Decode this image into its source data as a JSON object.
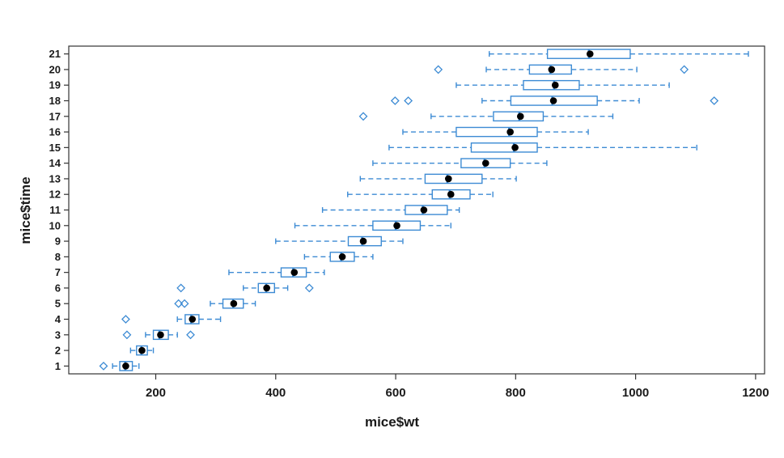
{
  "chart_data": {
    "type": "boxplot",
    "orientation": "horizontal",
    "title": "",
    "xlabel": "mice$wt",
    "ylabel": "mice$time",
    "xlim": [
      55,
      1215
    ],
    "xticks": [
      200,
      400,
      600,
      800,
      1000,
      1200
    ],
    "categories": [
      "1",
      "2",
      "3",
      "4",
      "5",
      "6",
      "7",
      "8",
      "9",
      "10",
      "11",
      "12",
      "13",
      "14",
      "15",
      "16",
      "17",
      "18",
      "19",
      "20",
      "21"
    ],
    "box_color": "#3d8bd4",
    "mean_point_color": "#000000",
    "axis_color": "#333333",
    "grid": false,
    "legend": "none",
    "boxes": [
      {
        "group": "1",
        "whisker_lo": 128,
        "q1": 140,
        "median": 149,
        "q3": 161,
        "whisker_hi": 172,
        "mean": 150,
        "outliers": [
          113
        ]
      },
      {
        "group": "2",
        "whisker_lo": 158,
        "q1": 168,
        "median": 176,
        "q3": 186,
        "whisker_hi": 196,
        "mean": 177,
        "outliers": []
      },
      {
        "group": "3",
        "whisker_lo": 183,
        "q1": 196,
        "median": 206,
        "q3": 221,
        "whisker_hi": 236,
        "mean": 208,
        "outliers": [
          152,
          258
        ]
      },
      {
        "group": "4",
        "whisker_lo": 236,
        "q1": 249,
        "median": 259,
        "q3": 272,
        "whisker_hi": 308,
        "mean": 261,
        "outliers": [
          150
        ]
      },
      {
        "group": "5",
        "whisker_lo": 291,
        "q1": 312,
        "median": 329,
        "q3": 346,
        "whisker_hi": 366,
        "mean": 330,
        "outliers": [
          238,
          248
        ]
      },
      {
        "group": "6",
        "whisker_lo": 346,
        "q1": 371,
        "median": 384,
        "q3": 398,
        "whisker_hi": 420,
        "mean": 385,
        "outliers": [
          242,
          456
        ]
      },
      {
        "group": "7",
        "whisker_lo": 322,
        "q1": 409,
        "median": 429,
        "q3": 451,
        "whisker_hi": 481,
        "mean": 431,
        "outliers": []
      },
      {
        "group": "8",
        "whisker_lo": 448,
        "q1": 491,
        "median": 509,
        "q3": 531,
        "whisker_hi": 562,
        "mean": 511,
        "outliers": []
      },
      {
        "group": "9",
        "whisker_lo": 400,
        "q1": 521,
        "median": 544,
        "q3": 576,
        "whisker_hi": 612,
        "mean": 546,
        "outliers": []
      },
      {
        "group": "10",
        "whisker_lo": 432,
        "q1": 562,
        "median": 600,
        "q3": 641,
        "whisker_hi": 692,
        "mean": 602,
        "outliers": []
      },
      {
        "group": "11",
        "whisker_lo": 478,
        "q1": 616,
        "median": 645,
        "q3": 686,
        "whisker_hi": 706,
        "mean": 647,
        "outliers": []
      },
      {
        "group": "12",
        "whisker_lo": 520,
        "q1": 661,
        "median": 690,
        "q3": 724,
        "whisker_hi": 762,
        "mean": 692,
        "outliers": []
      },
      {
        "group": "13",
        "whisker_lo": 541,
        "q1": 649,
        "median": 686,
        "q3": 744,
        "whisker_hi": 801,
        "mean": 688,
        "outliers": []
      },
      {
        "group": "14",
        "whisker_lo": 562,
        "q1": 709,
        "median": 748,
        "q3": 791,
        "whisker_hi": 852,
        "mean": 750,
        "outliers": []
      },
      {
        "group": "15",
        "whisker_lo": 589,
        "q1": 726,
        "median": 797,
        "q3": 836,
        "whisker_hi": 1102,
        "mean": 799,
        "outliers": []
      },
      {
        "group": "16",
        "whisker_lo": 612,
        "q1": 701,
        "median": 789,
        "q3": 836,
        "whisker_hi": 921,
        "mean": 791,
        "outliers": []
      },
      {
        "group": "17",
        "whisker_lo": 659,
        "q1": 763,
        "median": 806,
        "q3": 846,
        "whisker_hi": 962,
        "mean": 808,
        "outliers": [
          546
        ]
      },
      {
        "group": "18",
        "whisker_lo": 744,
        "q1": 792,
        "median": 861,
        "q3": 936,
        "whisker_hi": 1006,
        "mean": 863,
        "outliers": [
          599,
          621,
          1131
        ]
      },
      {
        "group": "19",
        "whisker_lo": 701,
        "q1": 813,
        "median": 864,
        "q3": 906,
        "whisker_hi": 1056,
        "mean": 866,
        "outliers": []
      },
      {
        "group": "20",
        "whisker_lo": 751,
        "q1": 823,
        "median": 858,
        "q3": 893,
        "whisker_hi": 1002,
        "mean": 860,
        "outliers": [
          671,
          1081
        ]
      },
      {
        "group": "21",
        "whisker_lo": 756,
        "q1": 853,
        "median": 922,
        "q3": 991,
        "whisker_hi": 1188,
        "mean": 924,
        "outliers": []
      }
    ]
  }
}
